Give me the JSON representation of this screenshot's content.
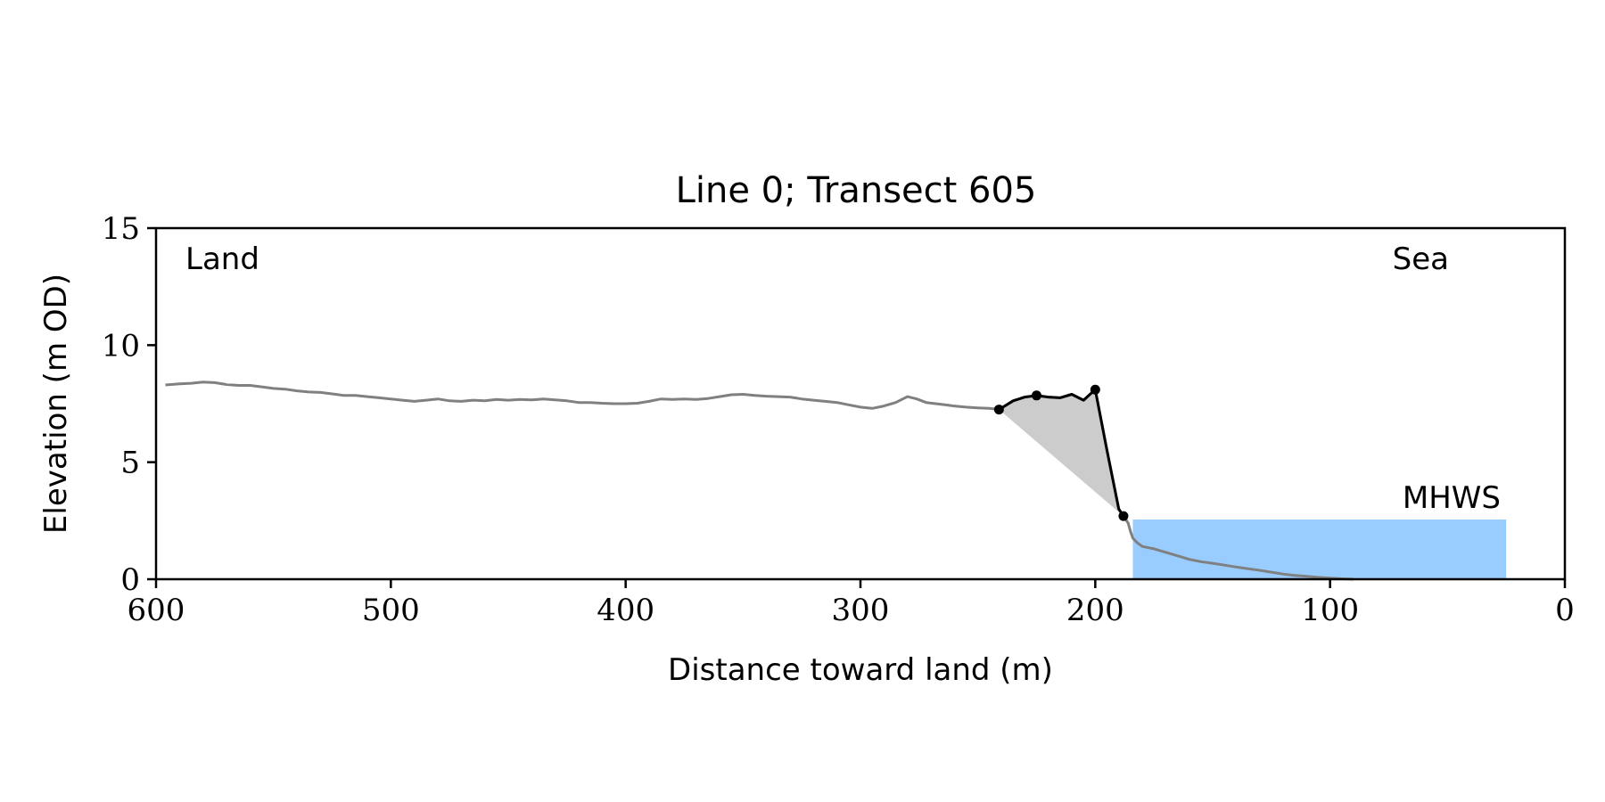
{
  "chart_data": {
    "type": "line",
    "title": "Line 0; Transect 605",
    "xlabel": "Distance toward land (m)",
    "ylabel": "Elevation (m OD)",
    "xlim": [
      600,
      0
    ],
    "ylim": [
      0,
      15
    ],
    "x_ticks": [
      600,
      500,
      400,
      300,
      200,
      100,
      0
    ],
    "y_ticks": [
      0,
      5,
      10,
      15
    ],
    "grid": false,
    "annotations": {
      "land": "Land",
      "sea": "Sea",
      "mhws": "MHWS"
    },
    "mhws": {
      "elevation": 2.55,
      "x_from": 184,
      "x_to": 25
    },
    "profile": {
      "color": "#808080",
      "x": [
        596,
        590,
        585,
        580,
        575,
        570,
        565,
        560,
        555,
        550,
        545,
        540,
        535,
        530,
        525,
        520,
        515,
        510,
        505,
        500,
        495,
        490,
        485,
        480,
        475,
        470,
        465,
        460,
        455,
        450,
        445,
        440,
        435,
        430,
        425,
        420,
        415,
        410,
        405,
        400,
        395,
        390,
        385,
        380,
        375,
        370,
        365,
        360,
        355,
        350,
        345,
        340,
        335,
        330,
        325,
        320,
        315,
        310,
        305,
        300,
        295,
        290,
        285,
        280,
        276,
        272,
        268,
        264,
        260,
        255,
        250,
        245,
        241,
        235,
        230,
        225,
        220,
        215,
        210,
        205,
        200,
        195,
        190,
        188,
        186,
        185,
        184,
        182,
        180,
        175,
        170,
        165,
        160,
        155,
        150,
        145,
        140,
        135,
        130,
        125,
        120,
        115,
        110,
        105,
        100,
        95,
        90
      ],
      "y": [
        8.3,
        8.35,
        8.37,
        8.42,
        8.4,
        8.32,
        8.28,
        8.28,
        8.22,
        8.15,
        8.12,
        8.05,
        8.0,
        7.98,
        7.92,
        7.85,
        7.85,
        7.8,
        7.75,
        7.7,
        7.65,
        7.6,
        7.65,
        7.7,
        7.62,
        7.6,
        7.65,
        7.62,
        7.68,
        7.65,
        7.68,
        7.66,
        7.7,
        7.66,
        7.62,
        7.55,
        7.55,
        7.52,
        7.5,
        7.5,
        7.52,
        7.6,
        7.7,
        7.68,
        7.7,
        7.68,
        7.72,
        7.8,
        7.88,
        7.9,
        7.85,
        7.82,
        7.8,
        7.78,
        7.7,
        7.65,
        7.6,
        7.55,
        7.45,
        7.35,
        7.3,
        7.4,
        7.55,
        7.8,
        7.7,
        7.55,
        7.5,
        7.45,
        7.4,
        7.35,
        7.32,
        7.3,
        7.25,
        7.62,
        7.78,
        7.85,
        7.78,
        7.75,
        7.9,
        7.65,
        8.1,
        5.5,
        3.0,
        2.7,
        2.4,
        2.05,
        1.75,
        1.55,
        1.4,
        1.3,
        1.15,
        1.0,
        0.85,
        0.75,
        0.68,
        0.6,
        0.52,
        0.45,
        0.38,
        0.3,
        0.22,
        0.16,
        0.12,
        0.08,
        0.05,
        0.02,
        0.0
      ]
    },
    "cliff_segment": {
      "color": "#000000",
      "x": [
        241,
        235,
        230,
        225,
        220,
        215,
        210,
        205,
        200,
        195,
        190,
        188
      ],
      "y": [
        7.25,
        7.62,
        7.78,
        7.85,
        7.78,
        7.75,
        7.9,
        7.65,
        8.1,
        5.5,
        3.0,
        2.7
      ]
    },
    "markers": [
      {
        "x": 241,
        "y": 7.25
      },
      {
        "x": 225,
        "y": 7.85
      },
      {
        "x": 200,
        "y": 8.1
      },
      {
        "x": 188,
        "y": 2.7
      }
    ],
    "fill_color": "#cccccc",
    "mhws_color": "#99ccff",
    "mhws_label_color": "#6699cc"
  }
}
